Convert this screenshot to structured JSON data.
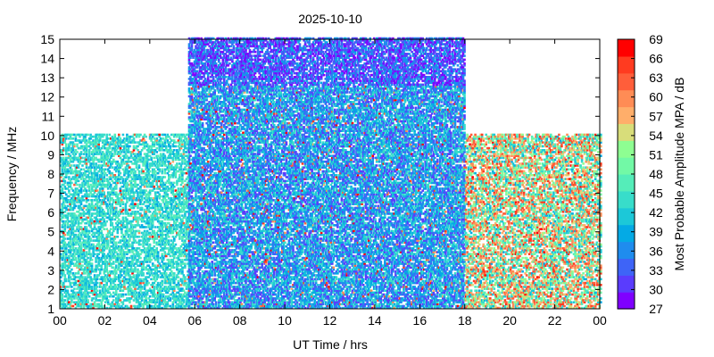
{
  "chart_data": {
    "type": "heatmap",
    "title": "2025-10-10",
    "xlabel": "UT Time / hrs",
    "ylabel": "Frequency / MHz",
    "colorbar_label": "Most Probable Amplitude MPA / dB",
    "xlim": [
      0,
      24
    ],
    "ylim": [
      1,
      15
    ],
    "x_ticks": [
      "00",
      "02",
      "04",
      "06",
      "08",
      "10",
      "12",
      "14",
      "16",
      "18",
      "20",
      "22",
      "00"
    ],
    "y_ticks": [
      "1",
      "2",
      "3",
      "4",
      "5",
      "6",
      "7",
      "8",
      "9",
      "10",
      "11",
      "12",
      "13",
      "14",
      "15"
    ],
    "colorbar_ticks": [
      "27",
      "30",
      "33",
      "36",
      "39",
      "42",
      "45",
      "48",
      "51",
      "54",
      "57",
      "60",
      "63",
      "66",
      "69"
    ],
    "colorbar_range": [
      27,
      69
    ],
    "colorbar_colors": [
      "#7f00ff",
      "#5a3cfd",
      "#3e64f7",
      "#1f8cee",
      "#04aae5",
      "#1cc8d8",
      "#38ddca",
      "#55edb9",
      "#72f9a6",
      "#8efe92",
      "#d8dd7a",
      "#ffae6a",
      "#ff8c55",
      "#ff5e3a",
      "#ff3b20",
      "#ff0000"
    ],
    "grid": false,
    "regions": [
      {
        "x_range": [
          0,
          5.7
        ],
        "freq_range": [
          1,
          10
        ],
        "typical_mpa": [
          39,
          48
        ],
        "note": ""
      },
      {
        "x_range": [
          5.7,
          18
        ],
        "freq_range": [
          1,
          15
        ],
        "typical_mpa": [
          30,
          45
        ],
        "note": ""
      },
      {
        "x_range": [
          18,
          24
        ],
        "freq_range": [
          1,
          10
        ],
        "typical_mpa": [
          39,
          66
        ],
        "note": ""
      }
    ]
  }
}
